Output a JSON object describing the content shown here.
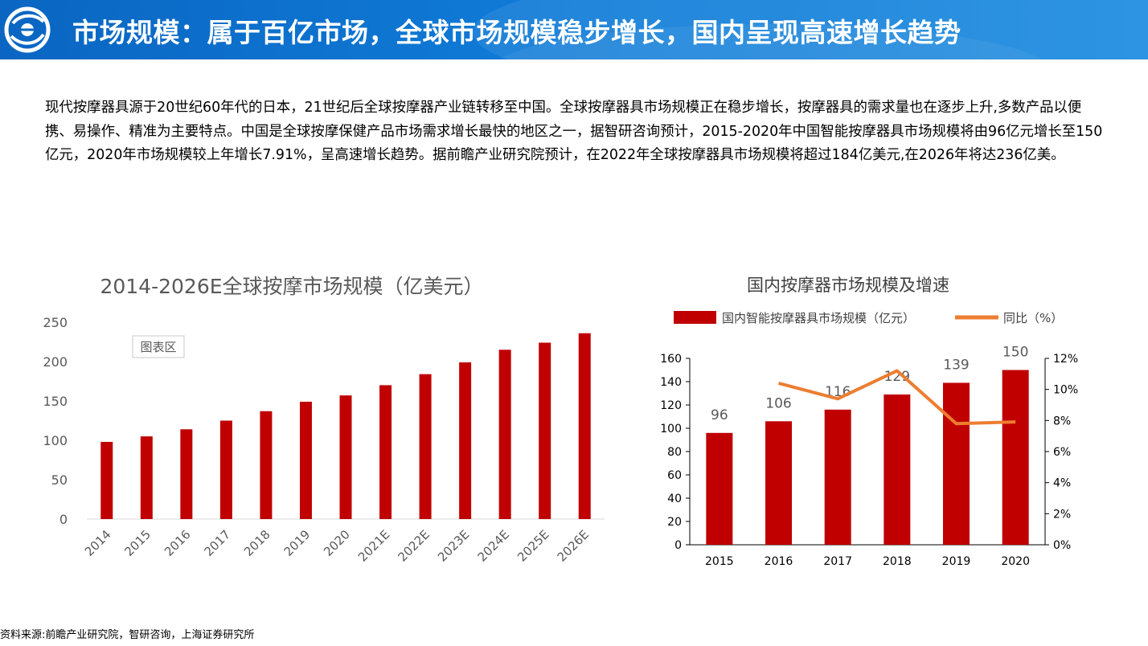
{
  "header": {
    "title": "市场规模：属于百亿市场，全球市场规模稳步增长，国内呈现高速增长趋势"
  },
  "body": {
    "paragraph": "现代按摩器具源于20世纪60年代的日本，21世纪后全球按摩器产业链转移至中国。全球按摩器具市场规模正在稳步增长，按摩器具的需求量也在逐步上升,多数产品以便携、易操作、精准为主要特点。中国是全球按摩保健产品市场需求增长最快的地区之一，据智研咨询预计，2015-2020年中国智能按摩器具市场规模将由96亿元增长至150亿元，2020年市场规模较上年增长7.91%，呈高速增长趋势。据前瞻产业研究院预计，在2022年全球按摩器具市场规模将超过184亿美元,在2026年将达236亿美。"
  },
  "source_note": "资料来源:前瞻产业研究院，智研咨询，上海证券研究所",
  "colors": {
    "bar": "#c00000",
    "line": "#ed7d31",
    "header": "#0a66c2"
  },
  "chart_data": [
    {
      "type": "bar",
      "title": "2014-2026E全球按摩市场规模（亿美元）",
      "tooltip": "图表区",
      "categories": [
        "2014",
        "2015",
        "2016",
        "2017",
        "2018",
        "2019",
        "2020",
        "2021E",
        "2022E",
        "2023E",
        "2024E",
        "2025E",
        "2026E"
      ],
      "values": [
        98,
        105,
        114,
        125,
        137,
        149,
        157,
        170,
        184,
        199,
        215,
        224,
        236
      ],
      "ylim": [
        0,
        250
      ],
      "yticks": [
        "0",
        "50",
        "100",
        "150",
        "200",
        "250"
      ],
      "xlabel": "",
      "ylabel": ""
    },
    {
      "type": "bar+line",
      "title": "国内按摩器市场规模及增速",
      "categories": [
        "2015",
        "2016",
        "2017",
        "2018",
        "2019",
        "2020"
      ],
      "series": [
        {
          "name": "国内智能按摩器具市场规模（亿元）",
          "axis": "left",
          "values": [
            96,
            106,
            116,
            129,
            139,
            150
          ],
          "labels": [
            "96",
            "106",
            "116",
            "129",
            "139",
            "150"
          ]
        },
        {
          "name": "同比（%）",
          "axis": "right",
          "values": [
            null,
            10.4,
            9.4,
            11.2,
            7.8,
            7.91
          ]
        }
      ],
      "ylim_left": [
        0,
        160
      ],
      "yticks_left": [
        "0",
        "20",
        "40",
        "60",
        "80",
        "100",
        "120",
        "140",
        "160"
      ],
      "ylim_right": [
        0,
        12
      ],
      "yticks_right": [
        "0%",
        "2%",
        "4%",
        "6%",
        "8%",
        "10%",
        "12%"
      ]
    }
  ]
}
